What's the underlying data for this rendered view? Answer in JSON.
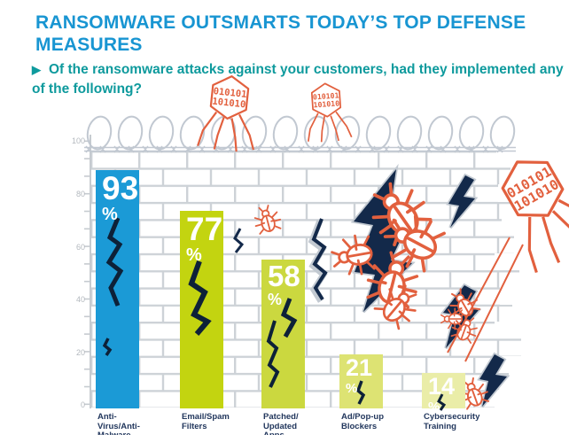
{
  "header": {
    "title": "RANSOMWARE OUTSMARTS TODAY’S TOP DEFENSE MEASURES",
    "subtitle_marker": "▶",
    "subtitle": "Of the ransomware attacks against your customers, had they implemented any of the following?"
  },
  "chart_data": {
    "type": "bar",
    "title": "RANSOMWARE OUTSMARTS TODAY’S TOP DEFENSE MEASURES",
    "question": "Of the ransomware attacks against your customers, had they implemented any of the following?",
    "categories": [
      "Anti-Virus/Anti-Malware",
      "Email/Spam Filters",
      "Patched/Updated Apps",
      "Ad/Pop-up Blockers",
      "Cybersecurity Training"
    ],
    "categories_wrapped": [
      "Anti-\nVirus/Anti-\nMalware",
      "Email/Spam\nFilters",
      "Patched/\nUpdated\nApps",
      "Ad/Pop-up\nBlockers",
      "Cybersecurity\nTraining"
    ],
    "values": [
      93,
      77,
      58,
      21,
      14
    ],
    "unit": "%",
    "ylim": [
      0,
      100
    ],
    "ytick_labels": [
      "100",
      "80",
      "60",
      "40",
      "20",
      "0"
    ],
    "grid": "none (brick-wall backdrop, ticks every 20)",
    "legend": "none",
    "bar_colors": [
      "#1b9ad6",
      "#c3d410",
      "#cbd83f",
      "#dde373",
      "#eaeda8"
    ],
    "value_label_color": "#ffffff"
  },
  "decorations": {
    "binary_line1": "010101",
    "binary_line2": "101010",
    "icon_names": [
      "barbed-wire",
      "brick-wall",
      "virus-phage-icon",
      "bug-icon",
      "lightning-crack-icon"
    ],
    "colors": {
      "accent_orange": "#e2603e",
      "navy": "#13294a",
      "wall_mortar": "#cdd2d7",
      "wire_gray": "#c1c8d1"
    }
  }
}
